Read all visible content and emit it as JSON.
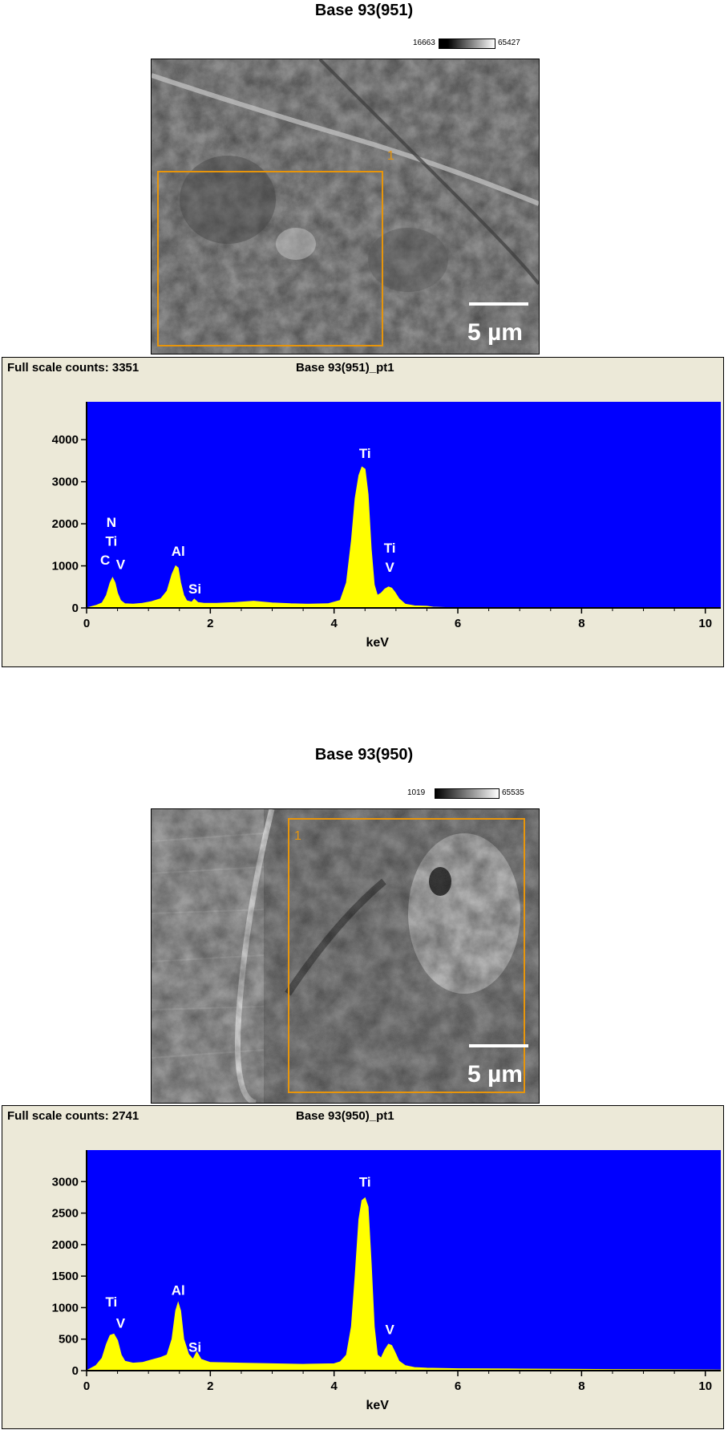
{
  "panels": [
    {
      "title": "Base 93(951)",
      "scale_min": "16663",
      "scale_max": "65427",
      "region_label": "1",
      "scale_length_label": "5 µm",
      "full_scale_label": "Full scale counts: 3351",
      "spectrum_title": "Base 93(951)_pt1"
    },
    {
      "title": "Base 93(950)",
      "scale_min": "1019",
      "scale_max": "65535",
      "region_label": "1",
      "scale_length_label": "5 µm",
      "full_scale_label": "Full scale counts: 2741",
      "spectrum_title": "Base 93(950)_pt1"
    }
  ],
  "chart_data": [
    {
      "type": "area",
      "title": "Base 93(951)_pt1",
      "xlabel": "keV",
      "ylabel": "",
      "xlim": [
        0,
        10.25
      ],
      "ylim": [
        0,
        4900
      ],
      "xticks": [
        0,
        2,
        4,
        6,
        8,
        10
      ],
      "yticks": [
        0,
        1000,
        2000,
        3000,
        4000
      ],
      "plot_background": "#0000ff",
      "fill_color": "#ffff00",
      "full_scale_counts": 3351,
      "x": [
        0,
        0.15,
        0.25,
        0.32,
        0.38,
        0.42,
        0.46,
        0.5,
        0.55,
        0.62,
        0.75,
        0.9,
        1.05,
        1.2,
        1.3,
        1.38,
        1.44,
        1.48,
        1.52,
        1.57,
        1.62,
        1.7,
        1.74,
        1.8,
        1.9,
        2.1,
        2.4,
        2.7,
        3.0,
        3.3,
        3.6,
        3.9,
        4.1,
        4.2,
        4.28,
        4.34,
        4.4,
        4.45,
        4.5,
        4.55,
        4.6,
        4.65,
        4.7,
        4.76,
        4.82,
        4.88,
        4.93,
        4.98,
        5.05,
        5.15,
        5.3,
        5.5,
        5.6,
        6.0,
        8.0,
        10.25
      ],
      "y": [
        0,
        60,
        120,
        300,
        600,
        720,
        600,
        350,
        180,
        100,
        90,
        110,
        150,
        220,
        400,
        800,
        1000,
        950,
        600,
        300,
        170,
        140,
        210,
        130,
        110,
        110,
        130,
        160,
        120,
        100,
        90,
        100,
        180,
        600,
        1600,
        2600,
        3150,
        3350,
        3300,
        2700,
        1400,
        550,
        300,
        350,
        450,
        500,
        470,
        380,
        220,
        90,
        50,
        40,
        20,
        0,
        0,
        0
      ],
      "peak_labels": [
        {
          "text": "N",
          "x": 0.4,
          "y": 1930
        },
        {
          "text": "Ti",
          "x": 0.4,
          "y": 1480
        },
        {
          "text": "C",
          "x": 0.3,
          "y": 1030
        },
        {
          "text": "V",
          "x": 0.55,
          "y": 920
        },
        {
          "text": "Al",
          "x": 1.48,
          "y": 1240
        },
        {
          "text": "Si",
          "x": 1.75,
          "y": 340
        },
        {
          "text": "Ti",
          "x": 4.5,
          "y": 3570
        },
        {
          "text": "Ti",
          "x": 4.9,
          "y": 1320
        },
        {
          "text": "V",
          "x": 4.9,
          "y": 860
        }
      ]
    },
    {
      "type": "area",
      "title": "Base 93(950)_pt1",
      "xlabel": "keV",
      "ylabel": "",
      "xlim": [
        0,
        10.25
      ],
      "ylim": [
        0,
        3500
      ],
      "xticks": [
        0,
        2,
        4,
        6,
        8,
        10
      ],
      "yticks": [
        0,
        500,
        1000,
        1500,
        2000,
        2500,
        3000
      ],
      "plot_background": "#0000ff",
      "fill_color": "#ffff00",
      "full_scale_counts": 2741,
      "x": [
        0,
        0.15,
        0.25,
        0.32,
        0.38,
        0.44,
        0.5,
        0.56,
        0.62,
        0.75,
        0.9,
        1.05,
        1.2,
        1.3,
        1.38,
        1.44,
        1.48,
        1.52,
        1.57,
        1.65,
        1.72,
        1.78,
        1.85,
        2.0,
        2.5,
        3.0,
        3.5,
        4.0,
        4.1,
        4.2,
        4.28,
        4.34,
        4.4,
        4.45,
        4.5,
        4.55,
        4.6,
        4.65,
        4.7,
        4.76,
        4.82,
        4.88,
        4.93,
        4.98,
        5.05,
        5.15,
        5.3,
        5.5,
        6.0,
        7.0,
        8.0,
        9.0,
        10.25
      ],
      "y": [
        0,
        80,
        200,
        420,
        560,
        580,
        480,
        250,
        150,
        120,
        130,
        170,
        210,
        250,
        500,
        950,
        1080,
        950,
        500,
        260,
        180,
        300,
        180,
        130,
        120,
        110,
        100,
        110,
        140,
        250,
        700,
        1500,
        2400,
        2700,
        2741,
        2600,
        1700,
        700,
        250,
        200,
        330,
        420,
        400,
        300,
        150,
        80,
        50,
        40,
        30,
        25,
        20,
        15,
        10
      ],
      "peak_labels": [
        {
          "text": "Ti",
          "x": 0.4,
          "y": 1020
        },
        {
          "text": "V",
          "x": 0.55,
          "y": 680
        },
        {
          "text": "Al",
          "x": 1.48,
          "y": 1200
        },
        {
          "text": "Si",
          "x": 1.75,
          "y": 300
        },
        {
          "text": "Ti",
          "x": 4.5,
          "y": 2920
        },
        {
          "text": "V",
          "x": 4.9,
          "y": 580
        }
      ]
    }
  ]
}
